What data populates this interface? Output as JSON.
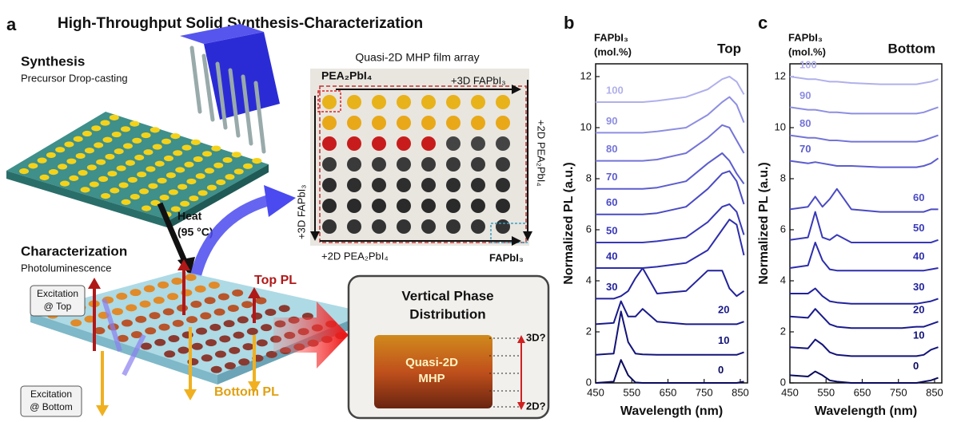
{
  "panel_a": {
    "label": "a",
    "title": "High-Throughput Solid Synthesis-Characterization",
    "synthesis_title": "Synthesis",
    "synthesis_subtitle": "Precursor Drop-casting",
    "heat": "Heat",
    "heat_temp": "(95 °C)",
    "characterization_title": "Characterization",
    "characterization_subtitle": "Photoluminescence",
    "excitation_top": [
      "Excitation",
      "@ Top"
    ],
    "excitation_bottom": [
      "Excitation",
      "@ Bottom"
    ],
    "top_pl": "Top PL",
    "bottom_pl": "Bottom PL",
    "array_title": "Quasi-2D MHP film array",
    "array_corner": "PEA₂PbI₄",
    "array_top_axis": "+3D FAPbI₃",
    "array_right_axis": "+2D PEA₂PbI₄",
    "array_left_axis": "+3D FAPbI₃",
    "array_bottom_axis": "+2D PEA₂PbI₄",
    "array_end": "FAPbI₃",
    "box_title": [
      "Vertical Phase",
      "Distribution"
    ],
    "box_material": [
      "Quasi-2D",
      "MHP"
    ],
    "box_top": "3D?",
    "box_bottom": "2D?"
  },
  "chart_data": [
    {
      "type": "line",
      "panel_label": "b",
      "title": "Top",
      "legend_title": [
        "FAPbI₃",
        "(mol.%)"
      ],
      "x_label": "Wavelength (nm)",
      "y_label": "Normalized PL (a.u.)",
      "x": [
        450,
        500,
        520,
        540,
        560,
        580,
        620,
        700,
        760,
        800,
        820,
        840,
        860
      ],
      "xlim": [
        450,
        870
      ],
      "xticks": [
        450,
        550,
        650,
        750,
        850
      ],
      "ylim": [
        0,
        12.5
      ],
      "yticks": [
        0,
        2,
        4,
        6,
        8,
        10,
        12
      ],
      "series": [
        {
          "name": "0",
          "color": "#0b0b5e",
          "values": [
            0,
            0.05,
            0.9,
            0.3,
            0.02,
            0,
            0,
            0,
            0,
            0,
            0,
            0,
            0.05
          ]
        },
        {
          "name": "10",
          "color": "#13137a",
          "values": [
            1.1,
            1.15,
            2.8,
            1.6,
            1.15,
            1.12,
            1.1,
            1.1,
            1.1,
            1.1,
            1.1,
            1.1,
            1.2
          ]
        },
        {
          "name": "20",
          "color": "#1a1a8c",
          "values": [
            2.3,
            2.35,
            3.2,
            2.6,
            2.6,
            2.9,
            2.4,
            2.3,
            2.3,
            2.3,
            2.3,
            2.3,
            2.4
          ]
        },
        {
          "name": "30",
          "color": "#22229c",
          "values": [
            3.3,
            3.3,
            3.4,
            3.6,
            4.1,
            4.5,
            3.5,
            3.6,
            4.4,
            4.4,
            3.7,
            3.4,
            3.6
          ]
        },
        {
          "name": "40",
          "color": "#2d2dad",
          "values": [
            4.5,
            4.5,
            4.5,
            4.5,
            4.5,
            4.5,
            4.55,
            4.7,
            5.2,
            6.0,
            6.4,
            6.2,
            5.0
          ]
        },
        {
          "name": "50",
          "color": "#3838b8",
          "values": [
            5.5,
            5.5,
            5.5,
            5.5,
            5.5,
            5.5,
            5.55,
            5.7,
            6.3,
            6.9,
            7.0,
            6.7,
            5.8
          ]
        },
        {
          "name": "60",
          "color": "#4a4ac4",
          "values": [
            6.6,
            6.6,
            6.6,
            6.6,
            6.6,
            6.6,
            6.65,
            6.9,
            7.6,
            8.2,
            8.3,
            7.9,
            7.0
          ]
        },
        {
          "name": "70",
          "color": "#5c5ccf",
          "values": [
            7.6,
            7.6,
            7.6,
            7.6,
            7.6,
            7.6,
            7.65,
            7.9,
            8.6,
            9.0,
            8.7,
            8.2,
            7.8
          ]
        },
        {
          "name": "80",
          "color": "#7474d8",
          "values": [
            8.7,
            8.7,
            8.7,
            8.7,
            8.7,
            8.7,
            8.75,
            9.0,
            9.6,
            10.1,
            10.0,
            9.5,
            9.0
          ]
        },
        {
          "name": "90",
          "color": "#8e8ee2",
          "values": [
            9.8,
            9.8,
            9.8,
            9.8,
            9.8,
            9.8,
            9.85,
            10.0,
            10.5,
            11.0,
            11.2,
            10.9,
            10.2
          ]
        },
        {
          "name": "100",
          "color": "#b0b0ec",
          "values": [
            11.0,
            11.0,
            11.0,
            11.0,
            11.0,
            11.0,
            11.05,
            11.2,
            11.5,
            11.9,
            12.0,
            11.8,
            11.3
          ]
        }
      ]
    },
    {
      "type": "line",
      "panel_label": "c",
      "title": "Bottom",
      "legend_title": [
        "FAPbI₃",
        "(mol.%)"
      ],
      "x_label": "Wavelength (nm)",
      "y_label": "Normalized PL (a.u.)",
      "x": [
        450,
        500,
        520,
        540,
        560,
        580,
        620,
        700,
        760,
        800,
        820,
        840,
        860
      ],
      "xlim": [
        450,
        870
      ],
      "xticks": [
        450,
        550,
        650,
        750,
        850
      ],
      "ylim": [
        0,
        12.5
      ],
      "yticks": [
        0,
        2,
        4,
        6,
        8,
        10,
        12
      ],
      "series": [
        {
          "name": "0",
          "color": "#0b0b5e",
          "values": [
            0.3,
            0.25,
            0.45,
            0.3,
            0.1,
            0.05,
            0,
            0,
            0,
            0,
            0.05,
            0.1,
            0.2
          ]
        },
        {
          "name": "10",
          "color": "#13137a",
          "values": [
            1.4,
            1.35,
            1.7,
            1.5,
            1.2,
            1.1,
            1.05,
            1.05,
            1.05,
            1.05,
            1.1,
            1.3,
            1.4
          ]
        },
        {
          "name": "20",
          "color": "#1a1a8c",
          "values": [
            2.6,
            2.55,
            2.9,
            2.6,
            2.3,
            2.2,
            2.15,
            2.15,
            2.15,
            2.2,
            2.2,
            2.3,
            2.4
          ]
        },
        {
          "name": "30",
          "color": "#22229c",
          "values": [
            3.5,
            3.5,
            3.7,
            3.4,
            3.2,
            3.15,
            3.1,
            3.1,
            3.1,
            3.1,
            3.15,
            3.2,
            3.3
          ]
        },
        {
          "name": "40",
          "color": "#2d2dad",
          "values": [
            4.5,
            4.6,
            5.5,
            4.8,
            4.45,
            4.4,
            4.4,
            4.4,
            4.4,
            4.4,
            4.4,
            4.45,
            4.5
          ]
        },
        {
          "name": "50",
          "color": "#3838b8",
          "values": [
            5.6,
            5.7,
            6.7,
            5.7,
            5.6,
            5.8,
            5.5,
            5.5,
            5.5,
            5.5,
            5.5,
            5.5,
            5.6
          ]
        },
        {
          "name": "60",
          "color": "#4a4ac4",
          "values": [
            6.8,
            6.9,
            7.3,
            6.9,
            7.2,
            7.6,
            6.8,
            6.7,
            6.7,
            6.7,
            6.7,
            6.8,
            6.8
          ]
        },
        {
          "name": "70",
          "color": "#5c5ccf",
          "values": [
            8.7,
            8.6,
            8.65,
            8.6,
            8.55,
            8.5,
            8.5,
            8.45,
            8.45,
            8.45,
            8.5,
            8.6,
            8.8
          ]
        },
        {
          "name": "80",
          "color": "#7474d8",
          "values": [
            9.7,
            9.6,
            9.6,
            9.55,
            9.5,
            9.5,
            9.45,
            9.45,
            9.45,
            9.45,
            9.5,
            9.6,
            9.7
          ]
        },
        {
          "name": "90",
          "color": "#8e8ee2",
          "values": [
            10.8,
            10.7,
            10.7,
            10.65,
            10.6,
            10.6,
            10.55,
            10.55,
            10.55,
            10.55,
            10.6,
            10.7,
            10.8
          ]
        },
        {
          "name": "100",
          "color": "#b0b0ec",
          "values": [
            12.0,
            11.9,
            11.9,
            11.85,
            11.8,
            11.8,
            11.75,
            11.7,
            11.7,
            11.7,
            11.75,
            11.8,
            11.9
          ]
        }
      ]
    }
  ]
}
